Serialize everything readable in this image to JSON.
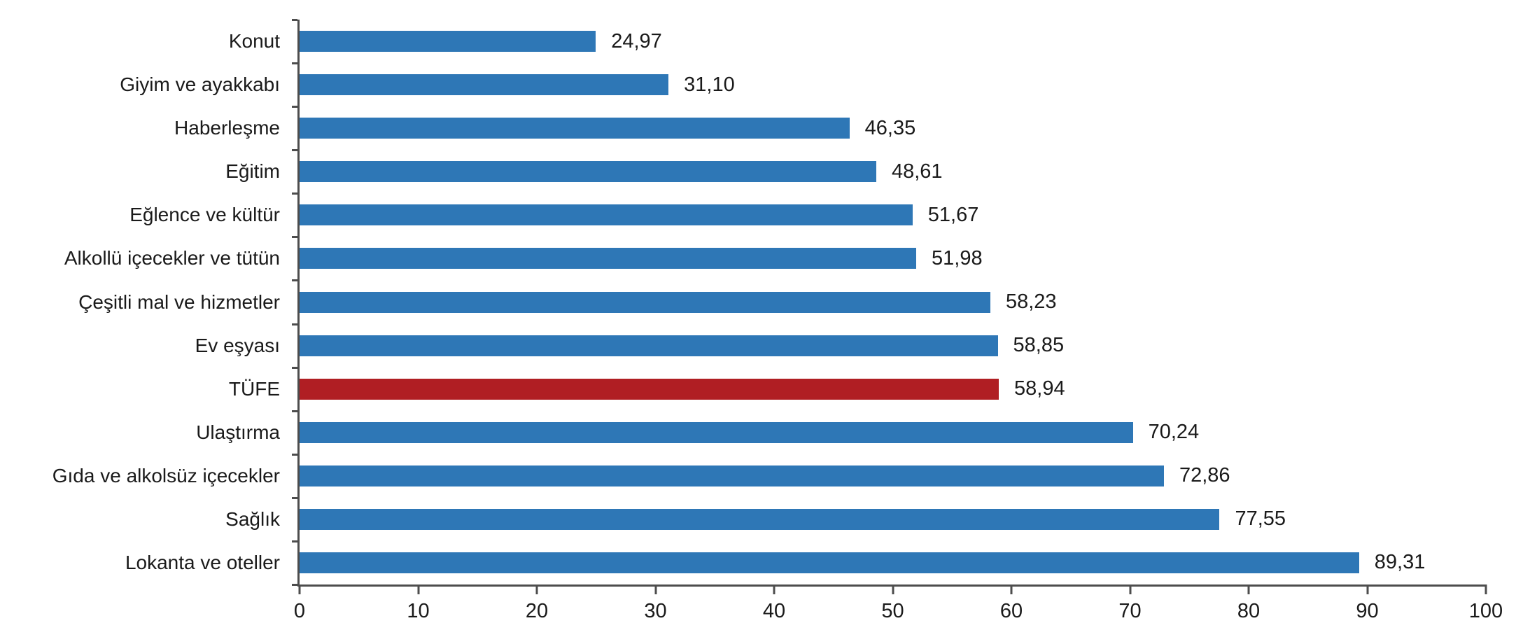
{
  "chart_data": {
    "type": "bar",
    "orientation": "horizontal",
    "title": "",
    "xlabel": "",
    "ylabel": "",
    "grid": false,
    "legend": "none",
    "xlim": [
      0,
      100
    ],
    "x_ticks": [
      0,
      10,
      20,
      30,
      40,
      50,
      60,
      70,
      80,
      90,
      100
    ],
    "categories": [
      "Konut",
      "Giyim ve ayakkabı",
      "Haberleşme",
      "Eğitim",
      "Eğlence ve kültür",
      "Alkollü içecekler ve tütün",
      "Çeşitli mal ve hizmetler",
      "Ev eşyası",
      "TÜFE",
      "Ulaştırma",
      "Gıda ve alkolsüz içecekler",
      "Sağlık",
      "Lokanta ve oteller"
    ],
    "values": [
      24.97,
      31.1,
      46.35,
      48.61,
      51.67,
      51.98,
      58.23,
      58.85,
      58.94,
      70.24,
      72.86,
      77.55,
      89.31
    ],
    "value_labels": [
      "24,97",
      "31,10",
      "46,35",
      "48,61",
      "51,67",
      "51,98",
      "58,23",
      "58,85",
      "58,94",
      "70,24",
      "72,86",
      "77,55",
      "89,31"
    ],
    "highlight_category": "TÜFE",
    "highlight_index": 8,
    "bar_color": "#2e77b6",
    "highlight_color": "#b01e23",
    "axis_color": "#4d4d4d",
    "text_color": "#1a1a1a"
  }
}
